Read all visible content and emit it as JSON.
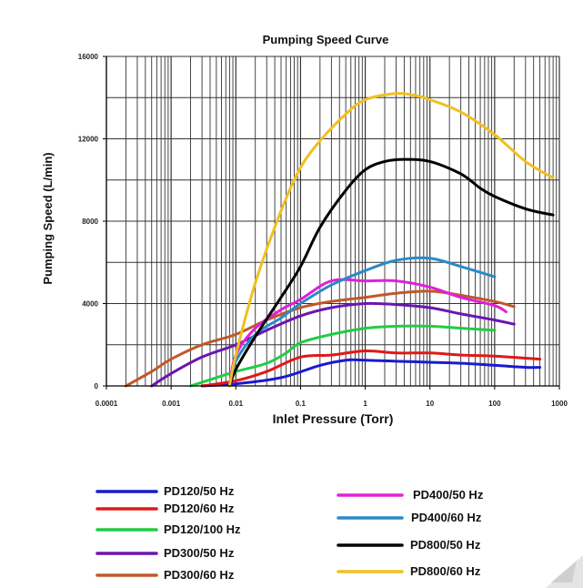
{
  "chart_data": {
    "type": "line",
    "title": "Pumping Speed Curve",
    "xlabel": "Inlet Pressure (Torr)",
    "ylabel": "Pumping Speed (L/min)",
    "xscale": "log",
    "xlim": [
      0.0001,
      1000
    ],
    "ylim": [
      0,
      16000
    ],
    "xticks": [
      "0.0001",
      "0.001",
      "0.01",
      "0.1",
      "1",
      "10",
      "100",
      "1000"
    ],
    "yticks": [
      "0",
      "4000",
      "8000",
      "12000",
      "16000"
    ],
    "grid": true,
    "legend_position": "bottom",
    "series": [
      {
        "name": "PD120/50 Hz",
        "color": "#1a1ad0",
        "points": [
          [
            0.003,
            0
          ],
          [
            0.01,
            100
          ],
          [
            0.05,
            400
          ],
          [
            0.2,
            1000
          ],
          [
            0.5,
            1250
          ],
          [
            1,
            1250
          ],
          [
            3,
            1200
          ],
          [
            10,
            1150
          ],
          [
            30,
            1100
          ],
          [
            100,
            1000
          ],
          [
            300,
            900
          ],
          [
            500,
            900
          ]
        ]
      },
      {
        "name": "PD120/60 Hz",
        "color": "#e01818",
        "points": [
          [
            0.003,
            0
          ],
          [
            0.01,
            250
          ],
          [
            0.03,
            700
          ],
          [
            0.1,
            1400
          ],
          [
            0.3,
            1500
          ],
          [
            1,
            1700
          ],
          [
            3,
            1600
          ],
          [
            10,
            1600
          ],
          [
            30,
            1500
          ],
          [
            100,
            1450
          ],
          [
            300,
            1350
          ],
          [
            500,
            1300
          ]
        ]
      },
      {
        "name": "PD120/100 Hz",
        "color": "#22cc44",
        "points": [
          [
            0.002,
            0
          ],
          [
            0.005,
            400
          ],
          [
            0.01,
            700
          ],
          [
            0.03,
            1100
          ],
          [
            0.06,
            1600
          ],
          [
            0.1,
            2100
          ],
          [
            0.3,
            2500
          ],
          [
            1,
            2800
          ],
          [
            3,
            2900
          ],
          [
            10,
            2900
          ],
          [
            30,
            2800
          ],
          [
            100,
            2700
          ]
        ]
      },
      {
        "name": "PD300/50 Hz",
        "color": "#6a16b0",
        "points": [
          [
            0.0005,
            0
          ],
          [
            0.001,
            600
          ],
          [
            0.003,
            1400
          ],
          [
            0.01,
            2000
          ],
          [
            0.03,
            2700
          ],
          [
            0.1,
            3400
          ],
          [
            0.3,
            3800
          ],
          [
            1,
            4000
          ],
          [
            3,
            3950
          ],
          [
            10,
            3800
          ],
          [
            30,
            3500
          ],
          [
            100,
            3200
          ],
          [
            200,
            3000
          ]
        ]
      },
      {
        "name": "PD300/60 Hz",
        "color": "#c0582a",
        "points": [
          [
            0.0002,
            0
          ],
          [
            0.0005,
            700
          ],
          [
            0.001,
            1300
          ],
          [
            0.003,
            2000
          ],
          [
            0.01,
            2500
          ],
          [
            0.03,
            3200
          ],
          [
            0.1,
            3800
          ],
          [
            0.3,
            4100
          ],
          [
            1,
            4300
          ],
          [
            3,
            4500
          ],
          [
            10,
            4600
          ],
          [
            30,
            4400
          ],
          [
            100,
            4100
          ],
          [
            200,
            3850
          ]
        ]
      },
      {
        "name": "PD400/50 Hz",
        "color": "#e020d8",
        "points": [
          [
            0.008,
            0
          ],
          [
            0.01,
            1500
          ],
          [
            0.02,
            2800
          ],
          [
            0.05,
            3700
          ],
          [
            0.1,
            4200
          ],
          [
            0.3,
            5100
          ],
          [
            1,
            5100
          ],
          [
            3,
            5100
          ],
          [
            10,
            4800
          ],
          [
            30,
            4300
          ],
          [
            100,
            3900
          ],
          [
            150,
            3600
          ]
        ]
      },
      {
        "name": "PD400/60 Hz",
        "color": "#2a8ac8",
        "points": [
          [
            0.008,
            0
          ],
          [
            0.01,
            1200
          ],
          [
            0.02,
            2500
          ],
          [
            0.05,
            3300
          ],
          [
            0.1,
            4000
          ],
          [
            0.3,
            4900
          ],
          [
            1,
            5600
          ],
          [
            3,
            6100
          ],
          [
            10,
            6200
          ],
          [
            30,
            5800
          ],
          [
            100,
            5300
          ]
        ]
      },
      {
        "name": "PD800/50 Hz",
        "color": "#000000",
        "points": [
          [
            0.008,
            0
          ],
          [
            0.01,
            800
          ],
          [
            0.02,
            2400
          ],
          [
            0.05,
            4300
          ],
          [
            0.1,
            5800
          ],
          [
            0.2,
            7700
          ],
          [
            0.5,
            9500
          ],
          [
            1,
            10500
          ],
          [
            2,
            10900
          ],
          [
            4,
            11000
          ],
          [
            10,
            10900
          ],
          [
            30,
            10300
          ],
          [
            60,
            9600
          ],
          [
            100,
            9200
          ],
          [
            300,
            8600
          ],
          [
            800,
            8300
          ]
        ]
      },
      {
        "name": "PD800/60 Hz",
        "color": "#f0c020",
        "points": [
          [
            0.008,
            0
          ],
          [
            0.01,
            1500
          ],
          [
            0.02,
            5000
          ],
          [
            0.05,
            8500
          ],
          [
            0.1,
            10600
          ],
          [
            0.2,
            11900
          ],
          [
            0.5,
            13200
          ],
          [
            1,
            13900
          ],
          [
            3,
            14200
          ],
          [
            6,
            14100
          ],
          [
            10,
            13900
          ],
          [
            30,
            13300
          ],
          [
            100,
            12200
          ],
          [
            300,
            10900
          ],
          [
            800,
            10100
          ]
        ]
      }
    ]
  }
}
